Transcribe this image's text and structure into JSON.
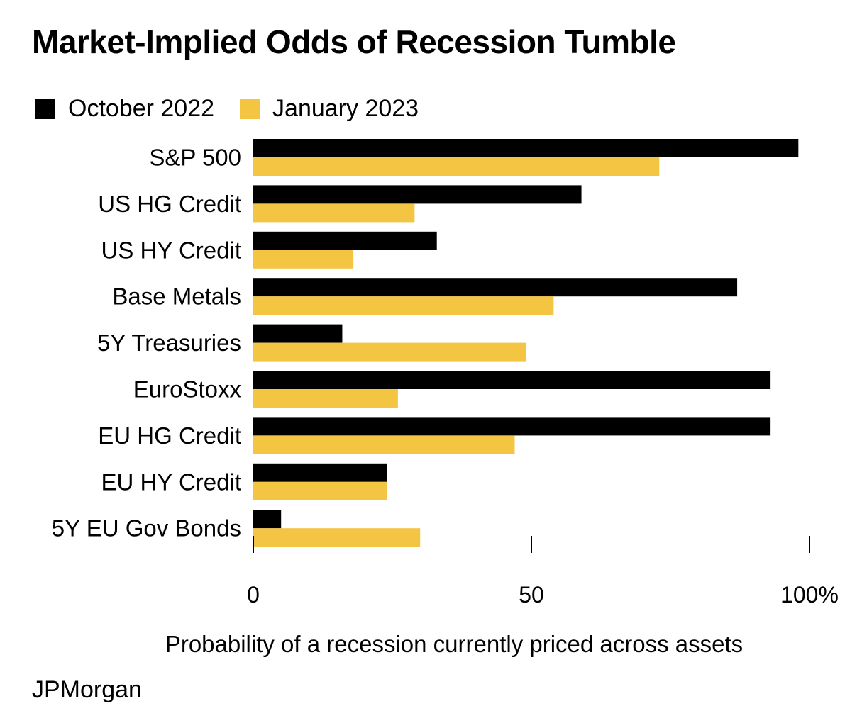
{
  "chart_data": {
    "type": "bar",
    "orientation": "horizontal",
    "title": "Market-Implied Odds of Recession Tumble",
    "xlabel": "Probability of a recession currently priced across assets",
    "ylabel": "",
    "xlim": [
      0,
      100
    ],
    "xticks": [
      {
        "value": 0,
        "label": "0"
      },
      {
        "value": 50,
        "label": "50"
      },
      {
        "value": 100,
        "label": "100%"
      }
    ],
    "categories": [
      "S&P 500",
      "US HG Credit",
      "US HY Credit",
      "Base Metals",
      "5Y Treasuries",
      "EuroStoxx",
      "EU HG Credit",
      "EU HY Credit",
      "5Y EU Gov Bonds"
    ],
    "series": [
      {
        "name": "October 2022",
        "color": "#000000",
        "values": [
          98,
          59,
          33,
          87,
          16,
          93,
          93,
          24,
          5
        ]
      },
      {
        "name": "January 2023",
        "color": "#f4c542",
        "values": [
          73,
          29,
          18,
          54,
          49,
          26,
          47,
          24,
          30
        ]
      }
    ],
    "legend_position": "top-left",
    "grid": false,
    "source": "JPMorgan"
  }
}
